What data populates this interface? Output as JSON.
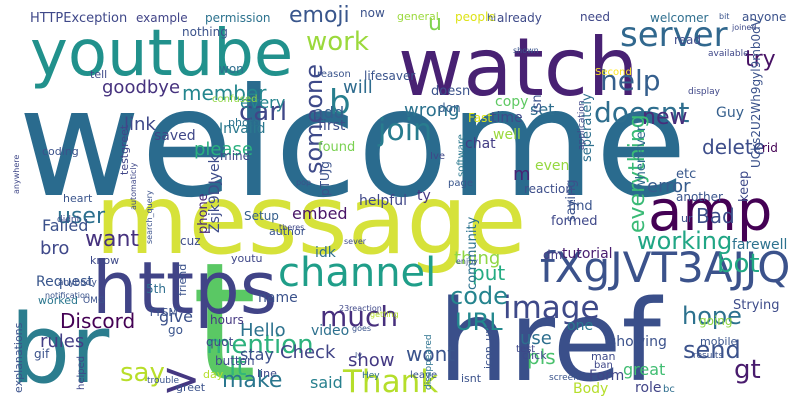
{
  "words": [
    {
      "text": "welcome",
      "color": "#2a6b8e"
    },
    {
      "text": "message",
      "color": "#d6e23a"
    },
    {
      "text": "href",
      "color": "#3a4f8a"
    },
    {
      "text": "br",
      "color": "#2b7d8e"
    },
    {
      "text": "t",
      "color": "#5ac864"
    },
    {
      "text": "watch",
      "color": "#482173"
    },
    {
      "text": "youtube",
      "color": "#21918c"
    },
    {
      "text": "https",
      "color": "#414487"
    },
    {
      "text": "amp",
      "color": "#440154"
    },
    {
      "text": "fXgJVT3AJJQ",
      "color": "#3b528b"
    },
    {
      "text": "channel",
      "color": "#1f9e89"
    },
    {
      "text": "server",
      "color": "#31688e"
    },
    {
      "text": "Thank",
      "color": "#b5de2b"
    },
    {
      "text": "image",
      "color": "#3e4989"
    },
    {
      "text": "join",
      "color": "#287c8e"
    },
    {
      "text": "work",
      "color": "#9bd93c"
    },
    {
      "text": "help",
      "color": "#355f8d"
    },
    {
      "text": "doesnt",
      "color": "#2e6e8e"
    },
    {
      "text": "try",
      "color": "#471164"
    },
    {
      "text": "b",
      "color": "#277f8e"
    },
    {
      "text": "emoji",
      "color": "#39568c"
    },
    {
      "text": "u",
      "color": "#7fd34e"
    },
    {
      "text": "carl",
      "color": "#3f4788"
    },
    {
      "text": "member",
      "color": "#24868e"
    },
    {
      "text": "goodbye",
      "color": "#46327e"
    },
    {
      "text": "link",
      "color": "#3f4889"
    },
    {
      "text": "send",
      "color": "#3b528b"
    },
    {
      "text": "gt",
      "color": "#481b6d"
    },
    {
      "text": "hope",
      "color": "#2c718e"
    },
    {
      "text": "working",
      "color": "#21a685"
    },
    {
      "text": "bot",
      "color": "#22a884"
    },
    {
      "text": "mention",
      "color": "#2db27d"
    },
    {
      "text": "much",
      "color": "#472f7d"
    },
    {
      "text": "code",
      "color": "#25848e"
    },
    {
      "text": "URL",
      "color": "#23888e"
    },
    {
      "text": "say",
      "color": "#b8de29"
    },
    {
      "text": "make",
      "color": "#2a768e"
    },
    {
      "text": "wont",
      "color": "#3a548c"
    },
    {
      "text": "lt",
      "color": "#32b67a"
    },
    {
      "text": ">",
      "color": "#453781"
    },
    {
      "text": "Discord",
      "color": "#440154"
    },
    {
      "text": "rules",
      "color": "#433e85"
    },
    {
      "text": "user",
      "color": "#2d708e"
    },
    {
      "text": "bro",
      "color": "#3f4889"
    },
    {
      "text": "want",
      "color": "#46327e"
    },
    {
      "text": "please",
      "color": "#2ab07f"
    },
    {
      "text": "Hello",
      "color": "#2c728e"
    },
    {
      "text": "Check",
      "color": "#414487"
    },
    {
      "text": "give",
      "color": "#3b518b"
    },
    {
      "text": "show",
      "color": "#443983"
    },
    {
      "text": "someone",
      "color": "#3e4a89"
    },
    {
      "text": "will",
      "color": "#2f6c8e"
    },
    {
      "text": "new",
      "color": "#472d7b"
    },
    {
      "text": "delete",
      "color": "#3d4d8a"
    },
    {
      "text": "error",
      "color": "#365c8d"
    },
    {
      "text": "everything",
      "color": "#3aba76"
    },
    {
      "text": "Bad",
      "color": "#3c4f8a"
    },
    {
      "text": "embed",
      "color": "#481467"
    },
    {
      "text": "Failed",
      "color": "#3b518b"
    },
    {
      "text": "put",
      "color": "#25ab82"
    },
    {
      "text": "thing",
      "color": "#8fd744"
    },
    {
      "text": "use",
      "color": "#2e6f8e"
    },
    {
      "text": "set",
      "color": "#2e6e8e"
    },
    {
      "text": "add",
      "color": "#355e8d"
    },
    {
      "text": "every",
      "color": "#25848e"
    },
    {
      "text": "said",
      "color": "#27808e"
    },
    {
      "text": "stay",
      "color": "#3c4f8a"
    },
    {
      "text": "m",
      "color": "#482475"
    },
    {
      "text": "pls",
      "color": "#4ac16d"
    },
    {
      "text": "wrong",
      "color": "#2c728e"
    },
    {
      "text": "idk",
      "color": "#2e6e8e"
    },
    {
      "text": "Invalid",
      "color": "#2a788e"
    },
    {
      "text": "saved",
      "color": "#3f4788"
    },
    {
      "text": "phone",
      "color": "#482878"
    },
    {
      "text": "Request",
      "color": "#39568c"
    },
    {
      "text": "video",
      "color": "#2d708e"
    },
    {
      "text": "name",
      "color": "#3b528b"
    },
    {
      "text": "Setup",
      "color": "#355f8d"
    },
    {
      "text": "helpful",
      "color": "#3f4788"
    },
    {
      "text": "tutorial",
      "color": "#481d6f"
    },
    {
      "text": "one",
      "color": "#2a778e"
    },
    {
      "text": "showing",
      "color": "#3b518b"
    },
    {
      "text": "great",
      "color": "#40bd72"
    },
    {
      "text": "role",
      "color": "#414487"
    },
    {
      "text": "Form",
      "color": "#404688"
    },
    {
      "text": "Body",
      "color": "#b5de2b"
    },
    {
      "text": "chat",
      "color": "#433d84"
    },
    {
      "text": "copy",
      "color": "#5ec962"
    },
    {
      "text": "time",
      "color": "#3e4a89"
    },
    {
      "text": "well",
      "color": "#9bd93c"
    },
    {
      "text": "Fast",
      "color": "#dde318"
    },
    {
      "text": "Guy",
      "color": "#355f8d"
    },
    {
      "text": "rid",
      "color": "#440154"
    },
    {
      "text": "etc",
      "color": "#38588c"
    },
    {
      "text": "keep",
      "color": "#3e4a89"
    },
    {
      "text": "farewell",
      "color": "#2c728e"
    },
    {
      "text": "formed",
      "color": "#3f4889"
    },
    {
      "text": "ur",
      "color": "#3b528b"
    },
    {
      "text": "whenever",
      "color": "#2f6b8e"
    },
    {
      "text": "another",
      "color": "#3a548c"
    },
    {
      "text": "Strying",
      "color": "#3e4c8a"
    },
    {
      "text": "going",
      "color": "#8fd744"
    },
    {
      "text": "dm",
      "color": "#433e85"
    },
    {
      "text": "isn",
      "color": "#3b528b"
    },
    {
      "text": "first",
      "color": "#3d4e8a"
    },
    {
      "text": "found",
      "color": "#7ad151"
    },
    {
      "text": "Ive",
      "color": "#3f4788"
    },
    {
      "text": "software",
      "color": "#2a788e"
    },
    {
      "text": "page",
      "color": "#39568c"
    },
    {
      "text": "ty",
      "color": "#453882"
    },
    {
      "text": "reaction",
      "color": "#3d4e8a"
    },
    {
      "text": "community",
      "color": "#2c728e"
    },
    {
      "text": "saying",
      "color": "#3b528b"
    },
    {
      "text": "seperately",
      "color": "#2d708e"
    },
    {
      "text": "even",
      "color": "#95d840"
    },
    {
      "text": "find",
      "color": "#3a548c"
    },
    {
      "text": "application",
      "color": "#3f4788"
    },
    {
      "text": "UCks2U2Wh9gyl9mb0dV",
      "color": "#3b528b"
    },
    {
      "text": "display",
      "color": "#3f4788"
    },
    {
      "text": "doesn",
      "color": "#3b528b"
    },
    {
      "text": "don",
      "color": "#355e8d"
    },
    {
      "text": "lifesaver",
      "color": "#3a548c"
    },
    {
      "text": "Second",
      "color": "#fde725"
    },
    {
      "text": "HTTPException",
      "color": "#3f4889"
    },
    {
      "text": "example",
      "color": "#414487"
    },
    {
      "text": "permission",
      "color": "#2c728e"
    },
    {
      "text": "nothing",
      "color": "#3b528b"
    },
    {
      "text": "won",
      "color": "#2e6e8e"
    },
    {
      "text": "photo",
      "color": "#2c728e"
    },
    {
      "text": "confused",
      "color": "#8fd744"
    },
    {
      "text": "mine",
      "color": "#3e4a89"
    },
    {
      "text": "testgreet",
      "color": "#404688"
    },
    {
      "text": "heart",
      "color": "#3a548c"
    },
    {
      "text": "cuz",
      "color": "#3e4c8a"
    },
    {
      "text": "friend",
      "color": "#3b528b"
    },
    {
      "text": "5th",
      "color": "#2e6e8e"
    },
    {
      "text": "youtu",
      "color": "#3f4788"
    },
    {
      "text": "know",
      "color": "#3e4a89"
    },
    {
      "text": "TYSM",
      "color": "#3b528b"
    },
    {
      "text": "worked",
      "color": "#2a768e"
    },
    {
      "text": "gif",
      "color": "#3b528b"
    },
    {
      "text": "go",
      "color": "#3a548c"
    },
    {
      "text": "quot",
      "color": "#3f4889"
    },
    {
      "text": "hours",
      "color": "#453882"
    },
    {
      "text": "button",
      "color": "#3e4c8a"
    },
    {
      "text": "day",
      "color": "#b5de2b"
    },
    {
      "text": "greet",
      "color": "#3b528b"
    },
    {
      "text": "line",
      "color": "#3e4a89"
    },
    {
      "text": "Hey",
      "color": "#2e6e8e"
    },
    {
      "text": "leave",
      "color": "#3a548c"
    },
    {
      "text": "isnt",
      "color": "#3b528b"
    },
    {
      "text": "man",
      "color": "#3e4a89"
    },
    {
      "text": "ban",
      "color": "#3f4788"
    },
    {
      "text": "bc",
      "color": "#2e6e8e"
    },
    {
      "text": "mobile",
      "color": "#3a548c"
    },
    {
      "text": "results",
      "color": "#3b528b"
    },
    {
      "text": "explanations",
      "color": "#3b528b"
    },
    {
      "text": "helped",
      "color": "#3f4889"
    },
    {
      "text": "trouble",
      "color": "#3a548c"
    },
    {
      "text": "disappeared",
      "color": "#2c728e"
    },
    {
      "text": "icon_url",
      "color": "#3b528b"
    },
    {
      "text": "click",
      "color": "#3e4a89"
    },
    {
      "text": "test",
      "color": "#3f4788"
    },
    {
      "text": "screen",
      "color": "#3a548c"
    },
    {
      "text": "enjoy",
      "color": "#3b528b"
    },
    {
      "text": "ly",
      "color": "#3a548c"
    },
    {
      "text": "author",
      "color": "#3a548c"
    },
    {
      "text": "sever",
      "color": "#3e4a89"
    },
    {
      "text": "getting",
      "color": "#b5de2b"
    },
    {
      "text": "23reaction",
      "color": "#3f4889"
    },
    {
      "text": "goes",
      "color": "#3a548c"
    },
    {
      "text": "pop",
      "color": "#3b528b"
    },
    {
      "text": "theres",
      "color": "#3f4788"
    },
    {
      "text": "Zsjk9DJyek",
      "color": "#3e4c8a"
    },
    {
      "text": "pTUJg",
      "color": "#3b528b"
    },
    {
      "text": "coding",
      "color": "#3b528b"
    },
    {
      "text": "didnt",
      "color": "#3e4a89"
    },
    {
      "text": "anywhere",
      "color": "#3f4788"
    },
    {
      "text": "notification",
      "color": "#3a548c"
    },
    {
      "text": "anybody",
      "color": "#3b528b"
    },
    {
      "text": "automaticly",
      "color": "#3f4889"
    },
    {
      "text": "search_query",
      "color": "#3b528b"
    },
    {
      "text": "OMG",
      "color": "#3b528b"
    },
    {
      "text": "tell",
      "color": "#3e4a89"
    },
    {
      "text": "reason",
      "color": "#3a548c"
    },
    {
      "text": "now",
      "color": "#3b528b"
    },
    {
      "text": "general",
      "color": "#9bd93c"
    },
    {
      "text": "people",
      "color": "#dde318"
    },
    {
      "text": "hi",
      "color": "#3b528b"
    },
    {
      "text": "already",
      "color": "#3e4a89"
    },
    {
      "text": "need",
      "color": "#3f4788"
    },
    {
      "text": "welcomer",
      "color": "#2e6e8e"
    },
    {
      "text": "bit",
      "color": "#3a548c"
    },
    {
      "text": "anyone",
      "color": "#3b528b"
    },
    {
      "text": "joined",
      "color": "#3e4a89"
    },
    {
      "text": "available",
      "color": "#3f4788"
    },
    {
      "text": "shown",
      "color": "#3a548c"
    },
    {
      "text": "read",
      "color": "#3e4a89"
    }
  ]
}
